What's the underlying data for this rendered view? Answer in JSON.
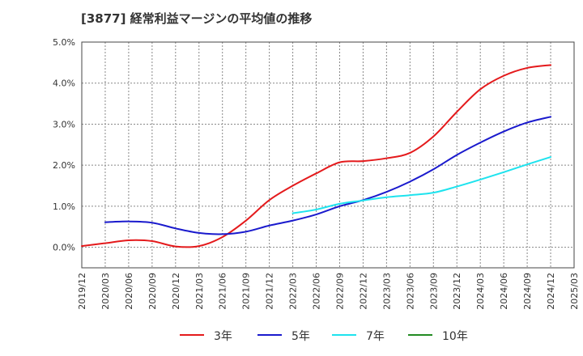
{
  "title": "[3877]  経常利益マージンの平均値の推移",
  "chart_data": {
    "type": "line",
    "title": "[3877]  経常利益マージンの平均値の推移",
    "xlabel": "",
    "ylabel": "",
    "x": [
      "2019/12",
      "2020/03",
      "2020/06",
      "2020/09",
      "2020/12",
      "2021/03",
      "2021/06",
      "2021/09",
      "2021/12",
      "2022/03",
      "2022/06",
      "2022/09",
      "2022/12",
      "2023/03",
      "2023/06",
      "2023/09",
      "2023/12",
      "2024/03",
      "2024/06",
      "2024/09",
      "2024/12",
      "2025/03"
    ],
    "y_ticks": [
      "5.0%",
      "4.0%",
      "3.0%",
      "2.0%",
      "1.0%",
      "0.0%"
    ],
    "ylim": [
      -0.5,
      5.0
    ],
    "grid": true,
    "legend_position": "bottom",
    "series": [
      {
        "name": "3年",
        "color": "#e41a1c",
        "values": [
          0.03,
          0.1,
          0.17,
          0.15,
          0.02,
          0.03,
          0.25,
          0.65,
          1.15,
          1.5,
          1.8,
          2.07,
          2.1,
          2.17,
          2.3,
          2.7,
          3.3,
          3.85,
          4.18,
          4.37,
          4.44,
          null
        ]
      },
      {
        "name": "5年",
        "color": "#1a1acd",
        "values": [
          null,
          0.61,
          0.63,
          0.6,
          0.46,
          0.35,
          0.32,
          0.38,
          0.53,
          0.65,
          0.8,
          1.0,
          1.15,
          1.35,
          1.6,
          1.9,
          2.25,
          2.55,
          2.82,
          3.04,
          3.18,
          null
        ]
      },
      {
        "name": "7年",
        "color": "#1ee3ee",
        "values": [
          null,
          null,
          null,
          null,
          null,
          null,
          null,
          null,
          null,
          0.83,
          0.92,
          1.06,
          1.14,
          1.22,
          1.27,
          1.33,
          1.48,
          1.65,
          1.83,
          2.02,
          2.2,
          null
        ]
      },
      {
        "name": "10年",
        "color": "#228b22",
        "values": [
          null,
          null,
          null,
          null,
          null,
          null,
          null,
          null,
          null,
          null,
          null,
          null,
          null,
          null,
          null,
          null,
          null,
          null,
          null,
          null,
          null,
          null
        ]
      }
    ]
  }
}
